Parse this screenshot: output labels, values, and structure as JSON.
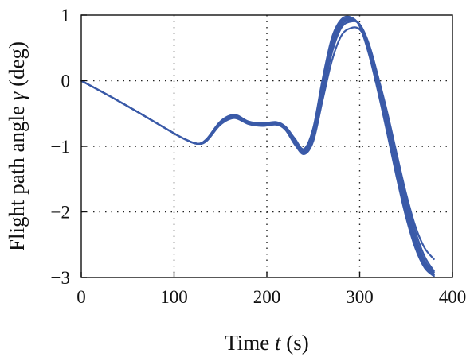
{
  "chart_data": {
    "type": "line",
    "xlabel": {
      "prefix": "Time ",
      "var": "t",
      "suffix": " (s)"
    },
    "ylabel": {
      "prefix": "Flight path angle ",
      "var": "γ",
      "suffix": " (deg)"
    },
    "xlim": [
      0,
      400
    ],
    "ylim": [
      -3,
      1
    ],
    "xticks": [
      0,
      100,
      200,
      300,
      400
    ],
    "yticks": [
      1,
      0,
      -1,
      -2,
      -3
    ],
    "xtick_labels": [
      "0",
      "100",
      "200",
      "300",
      "400"
    ],
    "ytick_labels": [
      "1",
      "0",
      "−1",
      "−2",
      "−3"
    ],
    "grid": "dotted",
    "legend": "none",
    "color": "#3a5aa8",
    "series": [
      {
        "x": [
          0,
          30,
          60,
          90,
          110,
          125,
          135,
          150,
          165,
          180,
          195,
          210,
          220,
          230,
          240,
          250,
          260,
          270,
          280,
          290,
          300,
          310,
          320,
          330,
          340,
          350,
          360,
          370,
          380
        ],
        "y": [
          0,
          -0.23,
          -0.47,
          -0.72,
          -0.88,
          -0.96,
          -0.9,
          -0.64,
          -0.54,
          -0.64,
          -0.67,
          -0.65,
          -0.72,
          -0.92,
          -1.08,
          -0.8,
          -0.1,
          0.55,
          0.88,
          0.93,
          0.85,
          0.48,
          -0.08,
          -0.7,
          -1.35,
          -1.95,
          -2.45,
          -2.78,
          -2.95
        ]
      },
      {
        "x": [
          0,
          30,
          60,
          90,
          110,
          125,
          135,
          150,
          165,
          180,
          195,
          210,
          220,
          230,
          240,
          250,
          260,
          270,
          280,
          290,
          300,
          310,
          320,
          330,
          340,
          350,
          360,
          370,
          380
        ],
        "y": [
          0,
          -0.23,
          -0.47,
          -0.72,
          -0.88,
          -0.96,
          -0.91,
          -0.66,
          -0.56,
          -0.65,
          -0.68,
          -0.66,
          -0.74,
          -0.95,
          -1.1,
          -0.88,
          -0.22,
          0.42,
          0.8,
          0.9,
          0.86,
          0.56,
          0.05,
          -0.55,
          -1.2,
          -1.8,
          -2.3,
          -2.68,
          -2.9
        ]
      },
      {
        "x": [
          0,
          30,
          60,
          90,
          110,
          125,
          135,
          150,
          165,
          180,
          195,
          210,
          220,
          230,
          240,
          250,
          260,
          270,
          280,
          290,
          300,
          310,
          320,
          330,
          340,
          350,
          360,
          370,
          380
        ],
        "y": [
          0,
          -0.23,
          -0.47,
          -0.72,
          -0.88,
          -0.96,
          -0.89,
          -0.62,
          -0.52,
          -0.62,
          -0.65,
          -0.63,
          -0.7,
          -0.88,
          -1.04,
          -0.72,
          0.02,
          0.65,
          0.93,
          0.97,
          0.83,
          0.4,
          -0.18,
          -0.82,
          -1.48,
          -2.08,
          -2.55,
          -2.85,
          -2.98
        ]
      },
      {
        "x": [
          0,
          30,
          60,
          90,
          110,
          125,
          135,
          150,
          165,
          180,
          195,
          210,
          220,
          230,
          240,
          250,
          260,
          270,
          280,
          290,
          300,
          310,
          320,
          330,
          340,
          350,
          360,
          370,
          380
        ],
        "y": [
          0,
          -0.23,
          -0.47,
          -0.72,
          -0.88,
          -0.96,
          -0.92,
          -0.67,
          -0.57,
          -0.66,
          -0.69,
          -0.67,
          -0.75,
          -0.97,
          -1.12,
          -0.92,
          -0.3,
          0.3,
          0.68,
          0.8,
          0.78,
          0.52,
          0.05,
          -0.5,
          -1.12,
          -1.72,
          -2.22,
          -2.55,
          -2.72
        ]
      },
      {
        "x": [
          0,
          30,
          60,
          90,
          110,
          125,
          135,
          150,
          165,
          180,
          195,
          210,
          220,
          230,
          240,
          250,
          260,
          270,
          280,
          290,
          300,
          310,
          320,
          330,
          340,
          350,
          360,
          370,
          380
        ],
        "y": [
          0,
          -0.23,
          -0.47,
          -0.72,
          -0.88,
          -0.96,
          -0.9,
          -0.64,
          -0.55,
          -0.64,
          -0.66,
          -0.64,
          -0.71,
          -0.9,
          -1.06,
          -0.76,
          -0.04,
          0.6,
          0.9,
          0.95,
          0.84,
          0.45,
          -0.12,
          -0.76,
          -1.42,
          -2.02,
          -2.5,
          -2.82,
          -2.96
        ]
      },
      {
        "x": [
          0,
          30,
          60,
          90,
          110,
          125,
          135,
          150,
          165,
          180,
          195,
          210,
          220,
          230,
          240,
          250,
          260,
          270,
          280,
          290,
          300,
          310,
          320,
          330,
          340,
          350,
          360,
          370,
          380
        ],
        "y": [
          0,
          -0.23,
          -0.47,
          -0.72,
          -0.88,
          -0.96,
          -0.91,
          -0.65,
          -0.55,
          -0.65,
          -0.67,
          -0.65,
          -0.73,
          -0.94,
          -1.09,
          -0.84,
          -0.16,
          0.48,
          0.84,
          0.92,
          0.86,
          0.52,
          -0.02,
          -0.62,
          -1.28,
          -1.88,
          -2.38,
          -2.74,
          -2.92
        ]
      }
    ]
  }
}
